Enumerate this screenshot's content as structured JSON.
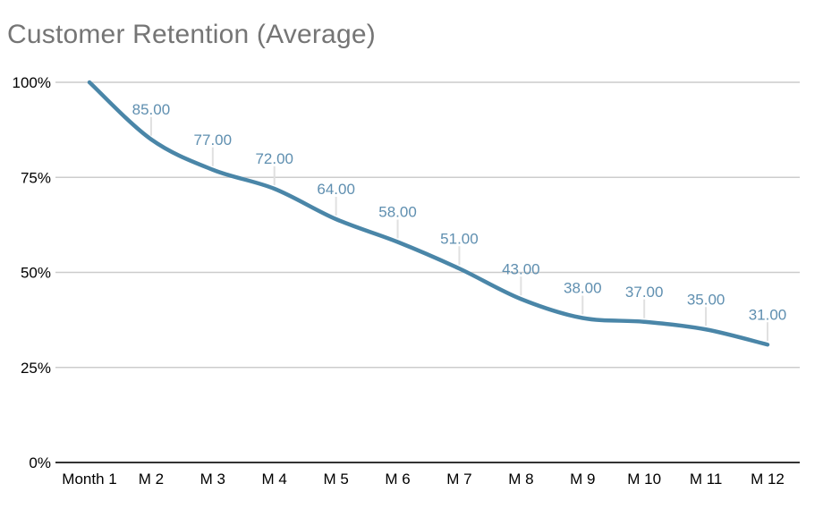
{
  "header": {
    "title": "Customer Retention (Average)"
  },
  "chart_data": {
    "type": "line",
    "title": "Customer Retention (Average)",
    "categories": [
      "Month 1",
      "M 2",
      "M 3",
      "M 4",
      "M 5",
      "M 6",
      "M 7",
      "M 8",
      "M 9",
      "M 10",
      "M 11",
      "M 12"
    ],
    "values": [
      100,
      85,
      77,
      72,
      64,
      58,
      51,
      43,
      38,
      37,
      35,
      31
    ],
    "data_labels": [
      null,
      "85.00",
      "77.00",
      "72.00",
      "64.00",
      "58.00",
      "51.00",
      "43.00",
      "38.00",
      "37.00",
      "35.00",
      "31.00"
    ],
    "y_tick_values": [
      0,
      25,
      50,
      75,
      100
    ],
    "y_tick_labels": [
      "0%",
      "25%",
      "50%",
      "75%",
      "100%"
    ],
    "xlabel": "",
    "ylabel": "",
    "ylim": [
      0,
      100
    ],
    "grid": true,
    "legend": "none",
    "smooth": true,
    "style": {
      "line_color": "#4a86a8",
      "data_label_color": "#5f8fb0",
      "gridline_color": "#cccccc",
      "axis_line_color": "#333333",
      "tick_label_color": "#000000",
      "title_color": "#757575",
      "leader_line_color": "#e0e0e0",
      "background": "#ffffff"
    }
  }
}
